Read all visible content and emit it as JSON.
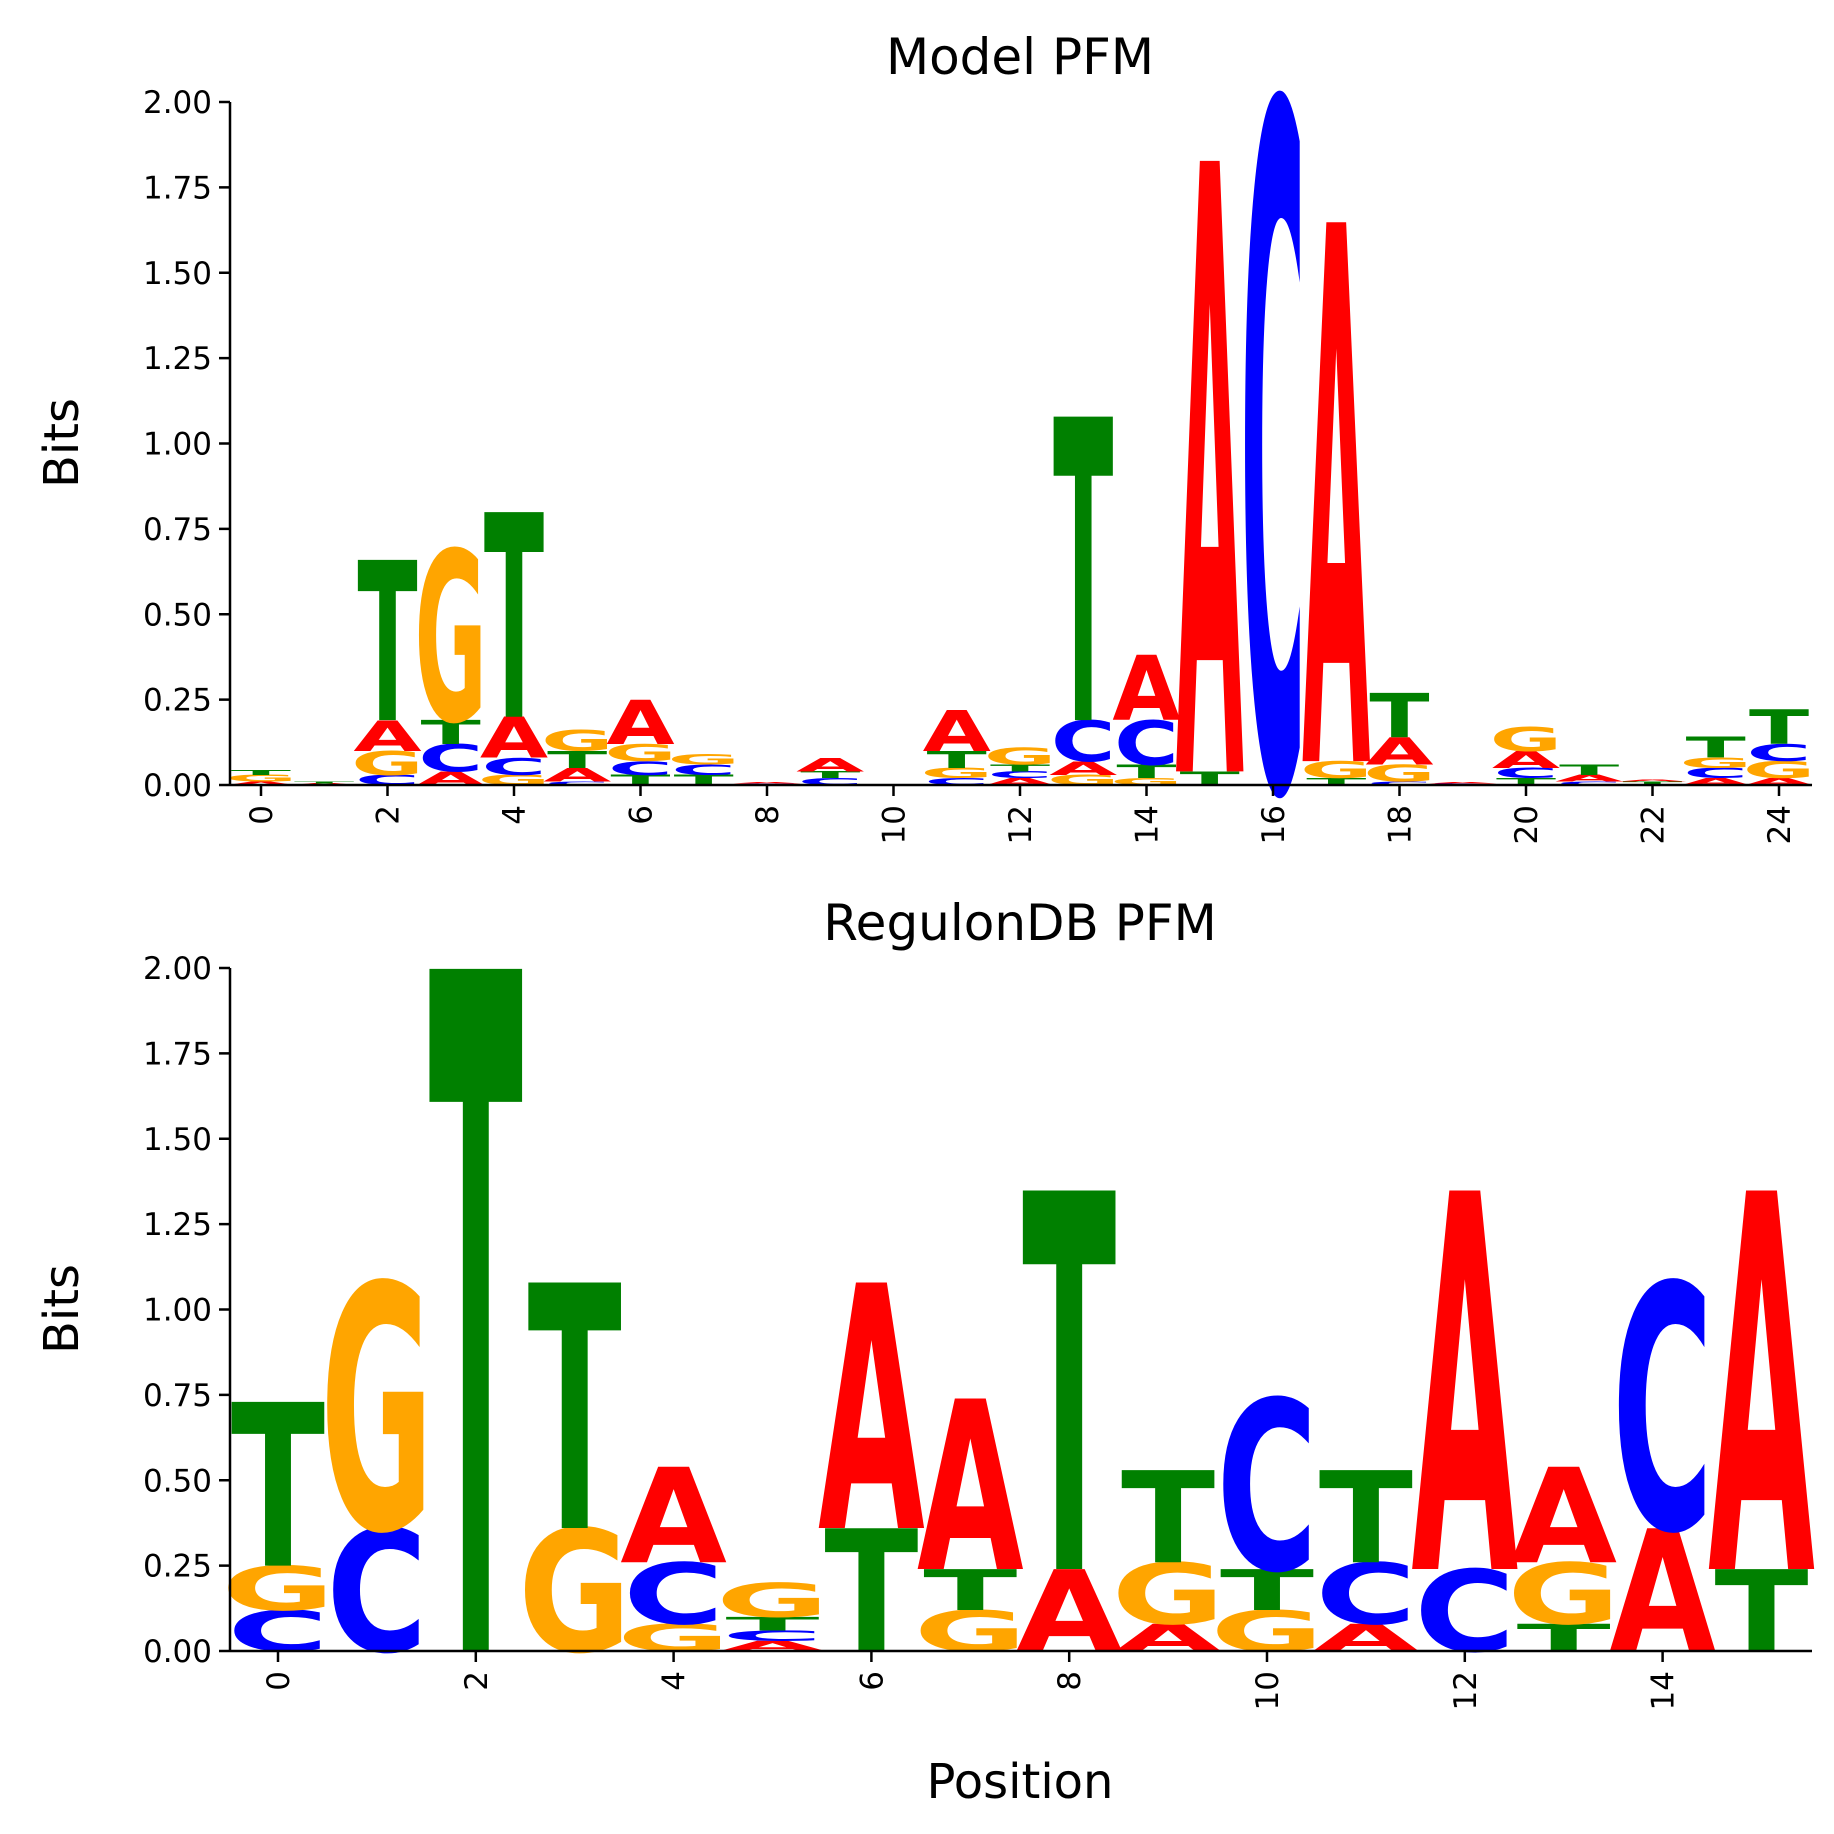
{
  "colors": {
    "A": "#ff0000",
    "C": "#0000ff",
    "G": "#ffa500",
    "T": "#008000"
  },
  "chart_data": [
    {
      "type": "sequence-logo",
      "title": "Model PFM",
      "ylabel": "Bits",
      "xlabel": "",
      "ylim": [
        0,
        2
      ],
      "yticks": [
        "0.00",
        "0.25",
        "0.50",
        "0.75",
        "1.00",
        "1.25",
        "1.50",
        "1.75",
        "2.00"
      ],
      "xticks": [
        "0",
        "2",
        "4",
        "6",
        "8",
        "10",
        "12",
        "14",
        "16",
        "18",
        "20",
        "22",
        "24"
      ],
      "positions": [
        [
          [
            "A",
            0.01
          ],
          [
            "G",
            0.02
          ],
          [
            "T",
            0.015
          ]
        ],
        [
          [
            "A",
            0.005
          ],
          [
            "T",
            0.005
          ]
        ],
        [
          [
            "C",
            0.03
          ],
          [
            "G",
            0.07
          ],
          [
            "A",
            0.09
          ],
          [
            "T",
            0.47
          ]
        ],
        [
          [
            "A",
            0.04
          ],
          [
            "C",
            0.08
          ],
          [
            "T",
            0.07
          ],
          [
            "G",
            0.5
          ]
        ],
        [
          [
            "G",
            0.03
          ],
          [
            "C",
            0.05
          ],
          [
            "A",
            0.12
          ],
          [
            "T",
            0.6
          ]
        ],
        [
          [
            "C",
            0.01
          ],
          [
            "A",
            0.04
          ],
          [
            "T",
            0.05
          ],
          [
            "G",
            0.06
          ]
        ],
        [
          [
            "T",
            0.03
          ],
          [
            "C",
            0.04
          ],
          [
            "G",
            0.05
          ],
          [
            "A",
            0.13
          ]
        ],
        [
          [
            "T",
            0.03
          ],
          [
            "C",
            0.03
          ],
          [
            "G",
            0.03
          ]
        ],
        [
          [
            "C",
            0.004
          ],
          [
            "A",
            0.003
          ]
        ],
        [
          [
            "C",
            0.02
          ],
          [
            "T",
            0.02
          ],
          [
            "A",
            0.04
          ]
        ],
        [],
        [
          [
            "C",
            0.02
          ],
          [
            "G",
            0.03
          ],
          [
            "T",
            0.05
          ],
          [
            "A",
            0.12
          ]
        ],
        [
          [
            "A",
            0.02
          ],
          [
            "C",
            0.02
          ],
          [
            "T",
            0.02
          ],
          [
            "G",
            0.05
          ]
        ],
        [
          [
            "G",
            0.03
          ],
          [
            "A",
            0.04
          ],
          [
            "C",
            0.12
          ],
          [
            "T",
            0.89
          ]
        ],
        [
          [
            "G",
            0.02
          ],
          [
            "T",
            0.04
          ],
          [
            "C",
            0.13
          ],
          [
            "A",
            0.19
          ]
        ],
        [
          [
            "T",
            0.04
          ],
          [
            "A",
            1.79
          ]
        ],
        [
          [
            "C",
            2.0
          ]
        ],
        [
          [
            "T",
            0.02
          ],
          [
            "G",
            0.05
          ],
          [
            "A",
            1.58
          ]
        ],
        [
          [
            "C",
            0.01
          ],
          [
            "G",
            0.05
          ],
          [
            "A",
            0.08
          ],
          [
            "T",
            0.13
          ]
        ],
        [
          [
            "C",
            0.005
          ],
          [
            "A",
            0.003
          ]
        ],
        [
          [
            "T",
            0.02
          ],
          [
            "C",
            0.03
          ],
          [
            "A",
            0.05
          ],
          [
            "G",
            0.07
          ]
        ],
        [
          [
            "C",
            0.01
          ],
          [
            "A",
            0.02
          ],
          [
            "T",
            0.03
          ]
        ],
        [
          [
            "T",
            0.01
          ],
          [
            "A",
            0.005
          ]
        ],
        [
          [
            "A",
            0.02
          ],
          [
            "C",
            0.03
          ],
          [
            "G",
            0.03
          ],
          [
            "T",
            0.06
          ]
        ],
        [
          [
            "A",
            0.02
          ],
          [
            "G",
            0.05
          ],
          [
            "C",
            0.05
          ],
          [
            "T",
            0.1
          ]
        ]
      ]
    },
    {
      "type": "sequence-logo",
      "title": "RegulonDB PFM",
      "ylabel": "Bits",
      "xlabel": "Position",
      "ylim": [
        0,
        2
      ],
      "yticks": [
        "0.00",
        "0.25",
        "0.50",
        "0.75",
        "1.00",
        "1.25",
        "1.50",
        "1.75",
        "2.00"
      ],
      "xticks": [
        "0",
        "2",
        "4",
        "6",
        "8",
        "10",
        "12",
        "14"
      ],
      "positions": [
        [
          [
            "C",
            0.12
          ],
          [
            "G",
            0.13
          ],
          [
            "T",
            0.48
          ]
        ],
        [
          [
            "C",
            0.36
          ],
          [
            "G",
            0.72
          ]
        ],
        [
          [
            "T",
            2.0
          ]
        ],
        [
          [
            "G",
            0.36
          ],
          [
            "T",
            0.72
          ]
        ],
        [
          [
            "G",
            0.08
          ],
          [
            "C",
            0.18
          ],
          [
            "A",
            0.28
          ]
        ],
        [
          [
            "A",
            0.03
          ],
          [
            "C",
            0.03
          ],
          [
            "T",
            0.04
          ],
          [
            "G",
            0.1
          ]
        ],
        [
          [
            "T",
            0.36
          ],
          [
            "A",
            0.72
          ]
        ],
        [
          [
            "G",
            0.12
          ],
          [
            "T",
            0.12
          ],
          [
            "A",
            0.5
          ]
        ],
        [
          [
            "A",
            0.24
          ],
          [
            "T",
            1.11
          ]
        ],
        [
          [
            "A",
            0.08
          ],
          [
            "G",
            0.18
          ],
          [
            "T",
            0.27
          ]
        ],
        [
          [
            "G",
            0.12
          ],
          [
            "T",
            0.12
          ],
          [
            "C",
            0.5
          ]
        ],
        [
          [
            "A",
            0.08
          ],
          [
            "C",
            0.18
          ],
          [
            "T",
            0.27
          ]
        ],
        [
          [
            "C",
            0.24
          ],
          [
            "A",
            1.11
          ]
        ],
        [
          [
            "T",
            0.08
          ],
          [
            "G",
            0.18
          ],
          [
            "A",
            0.28
          ]
        ],
        [
          [
            "A",
            0.36
          ],
          [
            "C",
            0.72
          ]
        ],
        [
          [
            "T",
            0.24
          ],
          [
            "A",
            1.11
          ]
        ]
      ]
    }
  ]
}
